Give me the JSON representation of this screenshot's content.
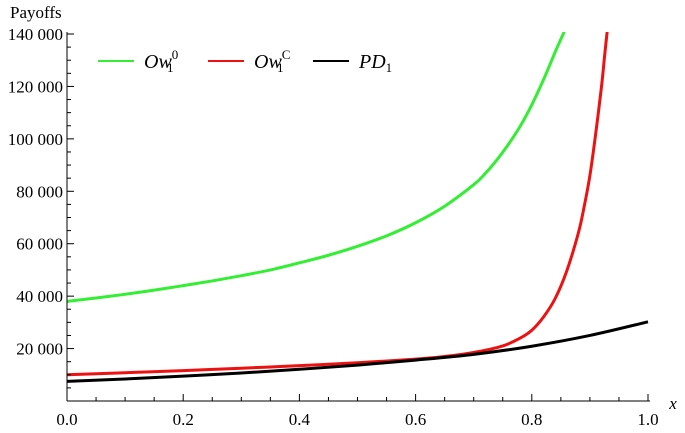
{
  "chart_data": {
    "type": "line",
    "ylabel": "Payoffs",
    "xlabel": "x",
    "xlim": [
      0,
      1
    ],
    "ylim": [
      0,
      140000
    ],
    "x_ticks": [
      0.0,
      0.2,
      0.4,
      0.6,
      0.8,
      1.0
    ],
    "x_tick_labels": [
      "0.0",
      "0.2",
      "0.4",
      "0.6",
      "0.8",
      "1.0"
    ],
    "y_ticks": [
      20000,
      40000,
      60000,
      80000,
      100000,
      120000,
      140000
    ],
    "y_tick_labels": [
      "20 000",
      "40 000",
      "60 000",
      "80 000",
      "100 000",
      "120 000",
      "140 000"
    ],
    "grid": false,
    "legend_position": "top-left",
    "series": [
      {
        "name": "Ow_1^0",
        "legend": {
          "base": "Ow",
          "sub": "1",
          "sup": "0"
        },
        "color": "#33ee33",
        "x": [
          0.0,
          0.05,
          0.1,
          0.15,
          0.2,
          0.25,
          0.3,
          0.35,
          0.4,
          0.45,
          0.5,
          0.55,
          0.6,
          0.65,
          0.7,
          0.72,
          0.74,
          0.76,
          0.78,
          0.8,
          0.82,
          0.84,
          0.85,
          0.857
        ],
        "y": [
          38000,
          39300,
          40700,
          42300,
          44000,
          45800,
          47800,
          50000,
          52700,
          55600,
          59000,
          63000,
          68000,
          74300,
          82500,
          86800,
          92000,
          98000,
          104800,
          113000,
          122500,
          133000,
          138000,
          141500
        ]
      },
      {
        "name": "Ow_1^C",
        "legend": {
          "base": "Ow",
          "sub": "1",
          "sup": "C"
        },
        "color": "#ee1111",
        "x": [
          0.0,
          0.1,
          0.2,
          0.3,
          0.4,
          0.5,
          0.6,
          0.65,
          0.7,
          0.75,
          0.78,
          0.8,
          0.82,
          0.84,
          0.86,
          0.88,
          0.89,
          0.9,
          0.91,
          0.92,
          0.925,
          0.93
        ],
        "y": [
          10000,
          10800,
          11600,
          12500,
          13500,
          14600,
          16000,
          17000,
          18500,
          21000,
          24000,
          27000,
          32000,
          39000,
          49500,
          64000,
          74000,
          86000,
          102000,
          120000,
          131000,
          141500
        ]
      },
      {
        "name": "PD_1",
        "legend": {
          "base": "PD",
          "sub": "1",
          "sup": ""
        },
        "color": "#000000",
        "x": [
          0.0,
          0.1,
          0.2,
          0.3,
          0.4,
          0.5,
          0.6,
          0.7,
          0.8,
          0.9,
          1.0
        ],
        "y": [
          7500,
          8400,
          9500,
          10700,
          12100,
          13700,
          15600,
          17800,
          20900,
          25000,
          30200
        ]
      }
    ]
  }
}
